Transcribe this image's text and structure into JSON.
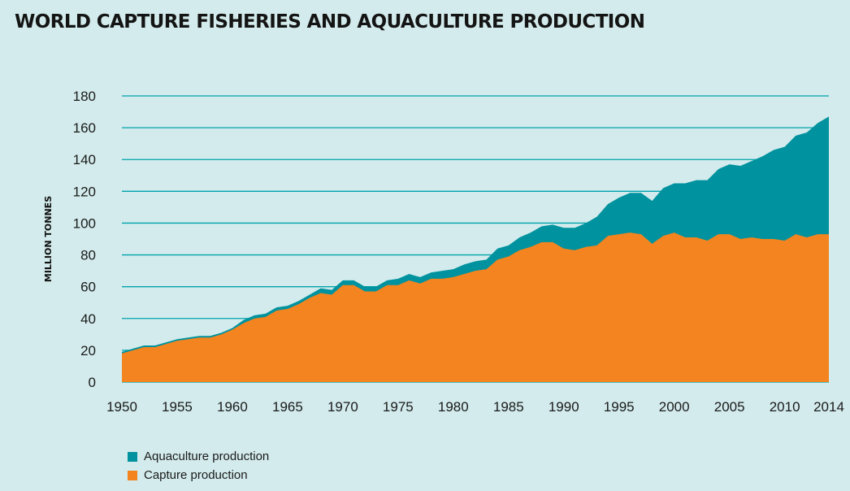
{
  "colors": {
    "background": "#d3ebec",
    "aquaculture": "#00929e",
    "capture": "#f3841f",
    "grid": "#00a3ad"
  },
  "chart_data": {
    "type": "area",
    "stacked": true,
    "title": "WORLD CAPTURE FISHERIES AND AQUACULTURE PRODUCTION",
    "xlabel": "",
    "ylabel": "MILLION TONNES",
    "xlim": [
      1950,
      2014
    ],
    "ylim": [
      0,
      180
    ],
    "yticks": [
      0,
      20,
      40,
      60,
      80,
      100,
      120,
      140,
      160,
      180
    ],
    "xticks": [
      1950,
      1955,
      1960,
      1965,
      1970,
      1975,
      1980,
      1985,
      1990,
      1995,
      2000,
      2005,
      2010,
      2014
    ],
    "grid": true,
    "legend_position": "bottom-left",
    "x": [
      1950,
      1951,
      1952,
      1953,
      1954,
      1955,
      1956,
      1957,
      1958,
      1959,
      1960,
      1961,
      1962,
      1963,
      1964,
      1965,
      1966,
      1967,
      1968,
      1969,
      1970,
      1971,
      1972,
      1973,
      1974,
      1975,
      1976,
      1977,
      1978,
      1979,
      1980,
      1981,
      1982,
      1983,
      1984,
      1985,
      1986,
      1987,
      1988,
      1989,
      1990,
      1991,
      1992,
      1993,
      1994,
      1995,
      1996,
      1997,
      1998,
      1999,
      2000,
      2001,
      2002,
      2003,
      2004,
      2005,
      2006,
      2007,
      2008,
      2009,
      2010,
      2011,
      2012,
      2013,
      2014
    ],
    "series": [
      {
        "name": "Capture production",
        "values": [
          18,
          20,
          22,
          22,
          24,
          26,
          27,
          28,
          28,
          30,
          33,
          37,
          40,
          41,
          45,
          46,
          49,
          53,
          56,
          55,
          61,
          61,
          57,
          57,
          61,
          61,
          64,
          62,
          65,
          65,
          66,
          68,
          70,
          71,
          77,
          79,
          83,
          85,
          88,
          88,
          84,
          83,
          85,
          86,
          92,
          93,
          94,
          93,
          87,
          92,
          94,
          91,
          91,
          89,
          93,
          93,
          90,
          91,
          90,
          90,
          89,
          93,
          91,
          93,
          93
        ]
      },
      {
        "name": "Aquaculture production",
        "values": [
          1,
          1,
          1,
          1,
          1,
          1,
          1,
          1,
          1,
          1,
          1,
          2,
          2,
          2,
          2,
          2,
          2,
          2,
          3,
          3,
          3,
          3,
          3,
          3,
          3,
          4,
          4,
          4,
          4,
          5,
          5,
          6,
          6,
          6,
          7,
          7,
          8,
          9,
          10,
          11,
          13,
          14,
          15,
          18,
          20,
          23,
          25,
          26,
          27,
          30,
          31,
          34,
          36,
          38,
          41,
          44,
          46,
          48,
          52,
          56,
          59,
          62,
          66,
          70,
          74
        ]
      }
    ]
  }
}
